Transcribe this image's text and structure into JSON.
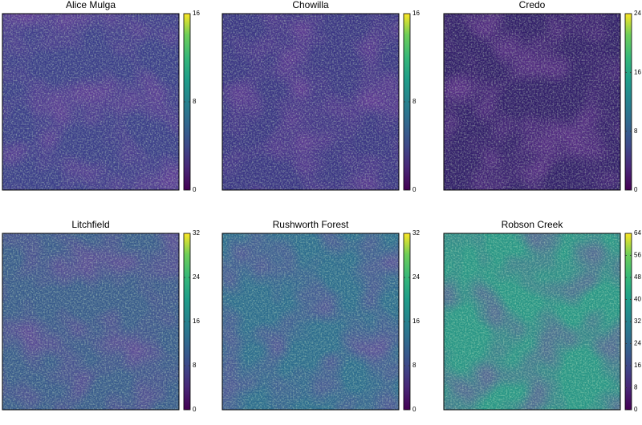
{
  "chart_data": [
    {
      "type": "heatmap",
      "title": "Alice Mulga",
      "zlim": [
        0,
        16
      ],
      "zticks": [
        0,
        8,
        16
      ]
    },
    {
      "type": "heatmap",
      "title": "Chowilla",
      "zlim": [
        0,
        16
      ],
      "zticks": [
        0,
        8,
        16
      ]
    },
    {
      "type": "heatmap",
      "title": "Credo",
      "zlim": [
        0,
        24
      ],
      "zticks": [
        0,
        8,
        16,
        24
      ]
    },
    {
      "type": "heatmap",
      "title": "Litchfield",
      "zlim": [
        0,
        32
      ],
      "zticks": [
        0,
        8,
        16,
        24,
        32
      ]
    },
    {
      "type": "heatmap",
      "title": "Rushworth Forest",
      "zlim": [
        0,
        32
      ],
      "zticks": [
        0,
        8,
        16,
        24,
        32
      ]
    },
    {
      "type": "heatmap",
      "title": "Robson Creek",
      "zlim": [
        0,
        64
      ],
      "zticks": [
        0,
        8,
        16,
        24,
        32,
        40,
        48,
        56,
        64
      ]
    }
  ]
}
